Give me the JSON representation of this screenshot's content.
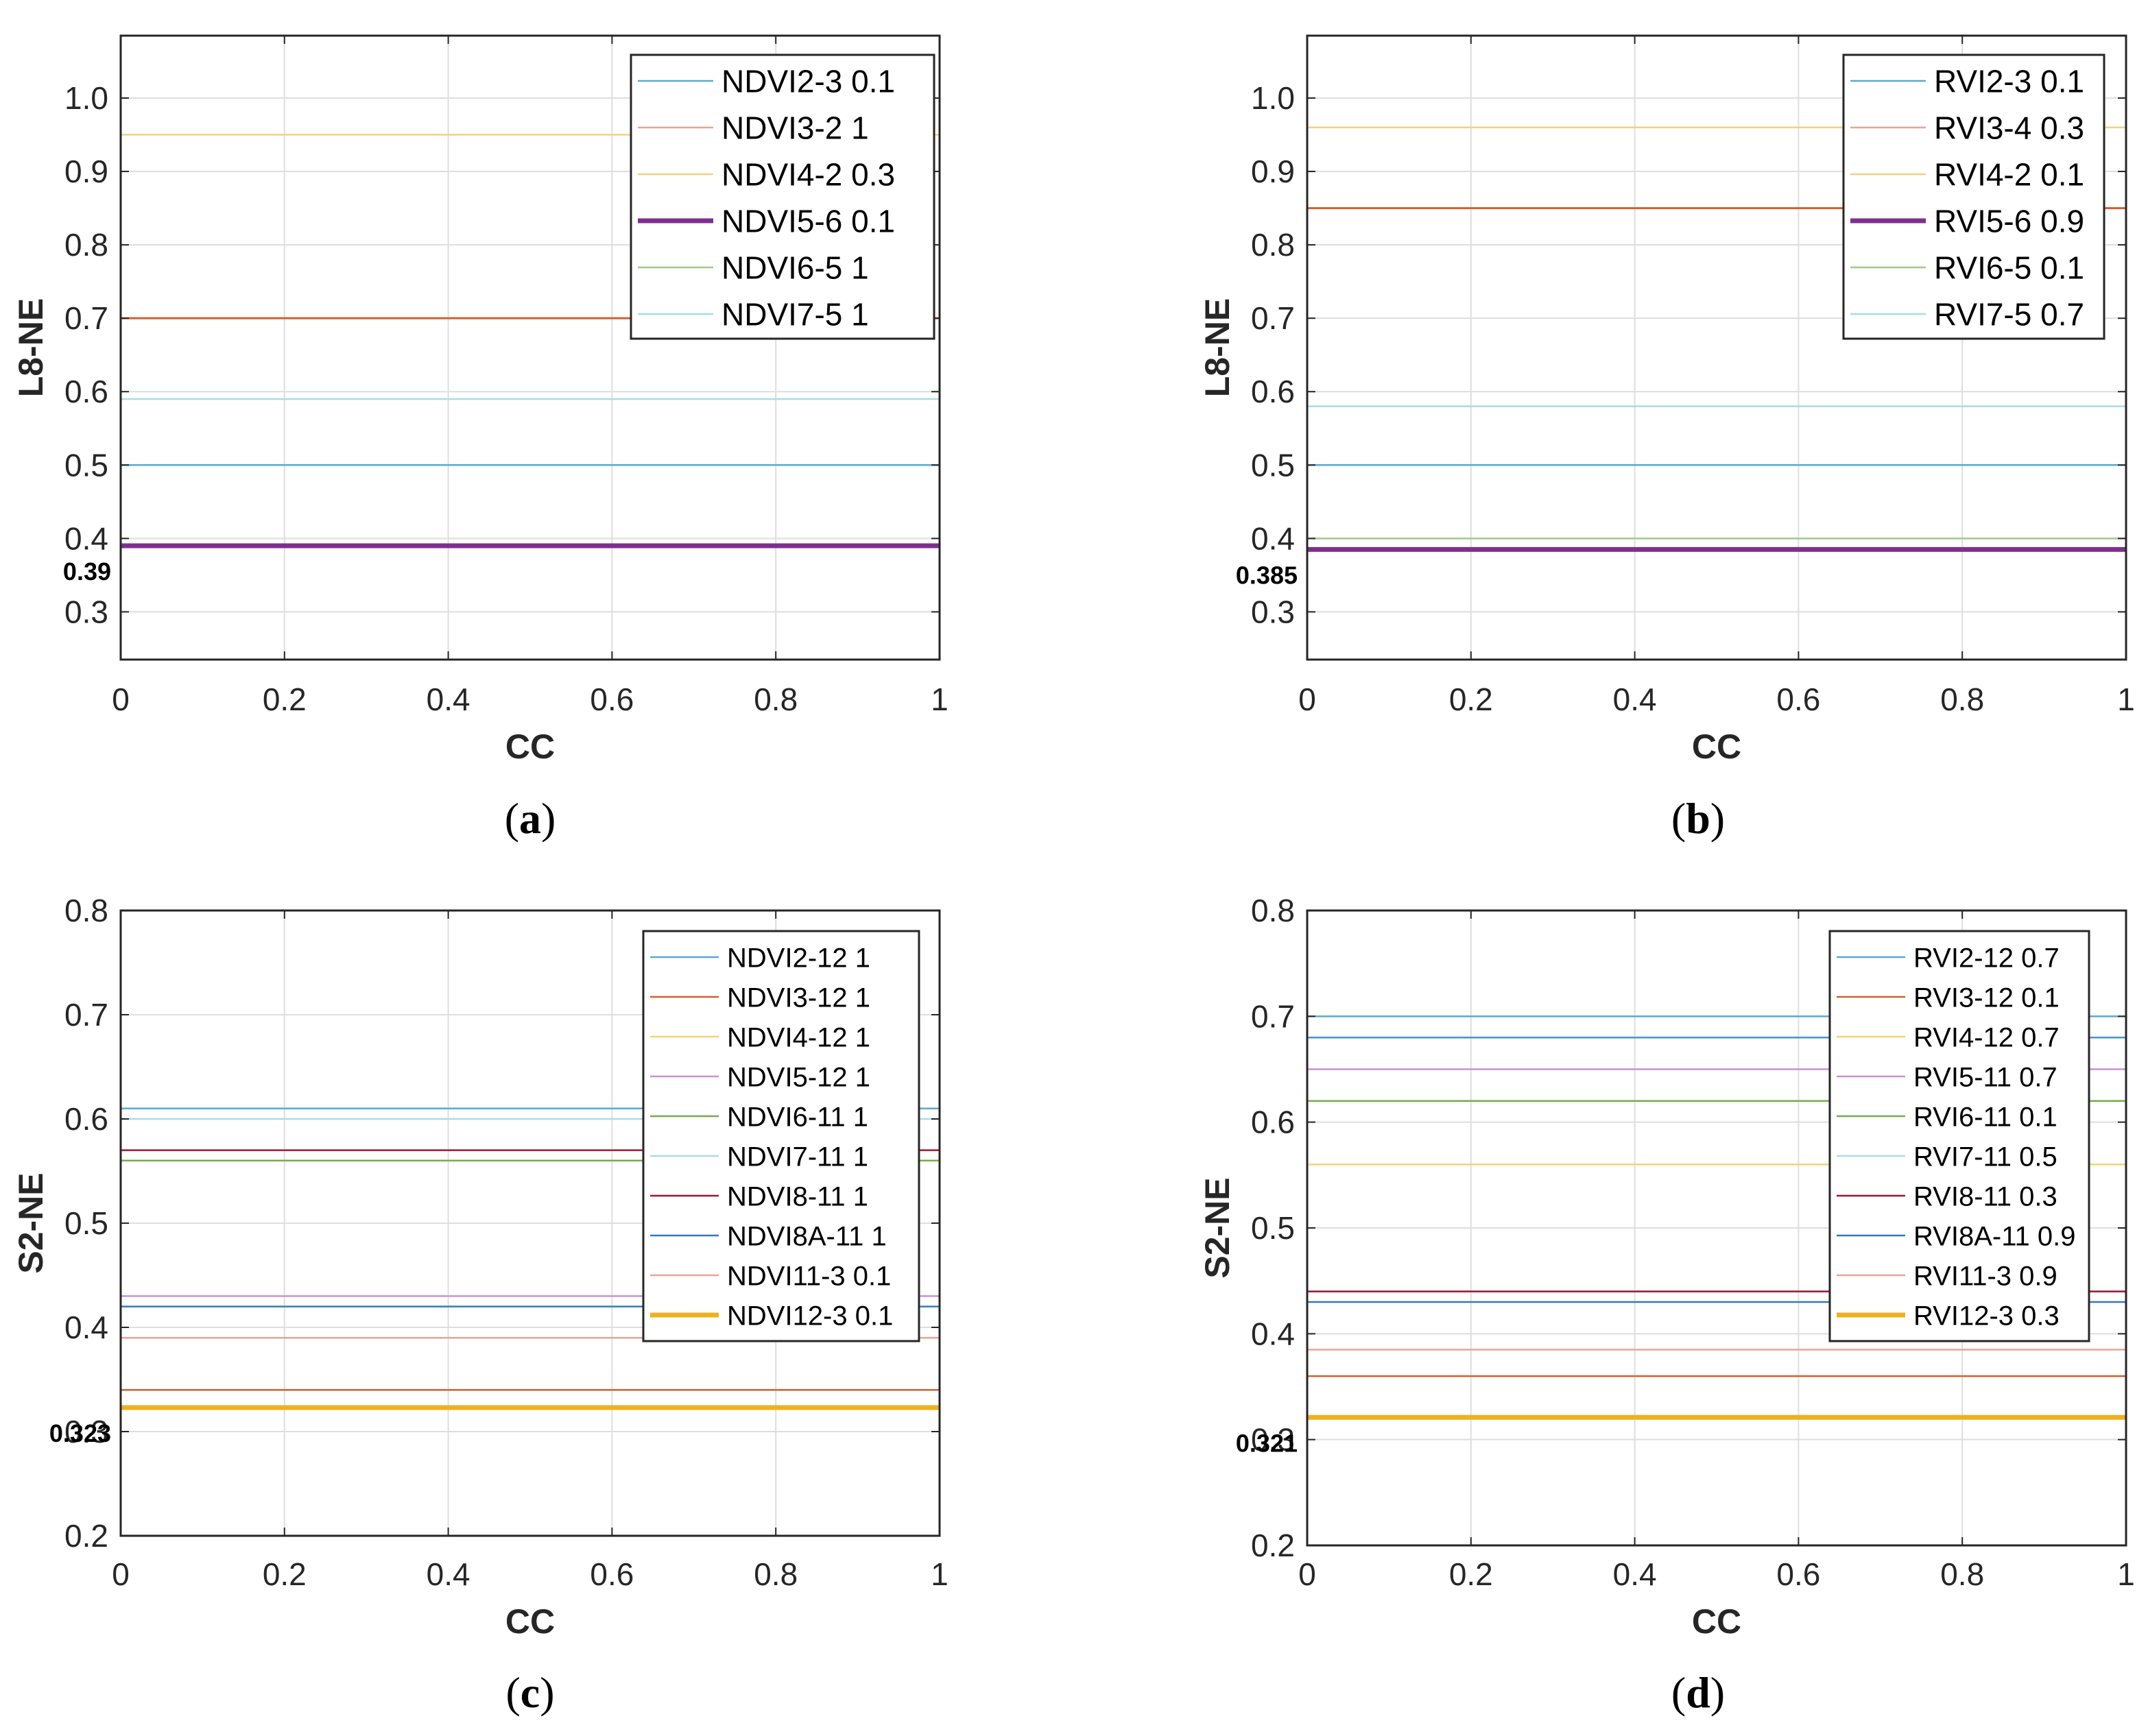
{
  "chart_data": [
    {
      "type": "line",
      "panel": "(a)",
      "caption_letter": "a",
      "xlabel": "CC",
      "ylabel": "L8-NE",
      "xlim": [
        0,
        1
      ],
      "ylim": [
        0.235,
        1.085
      ],
      "xticks": [
        "0",
        "0.2",
        "0.4",
        "0.6",
        "0.8",
        "1"
      ],
      "xtick_values": [
        0,
        0.2,
        0.4,
        0.6,
        0.8,
        1
      ],
      "yticks": [
        "0.3",
        "0.4",
        "0.5",
        "0.6",
        "0.7",
        "0.8",
        "0.9",
        "1.0"
      ],
      "ytick_values": [
        0.3,
        0.4,
        0.5,
        0.6,
        0.7,
        0.8,
        0.9,
        1.0
      ],
      "annotation": {
        "text": "0.39",
        "value": 0.39
      },
      "series": [
        {
          "name": "NDVI2-3 0.1",
          "value": 0.5,
          "color": "#5aa9cf",
          "width": 2.5
        },
        {
          "name": "NDVI3-2 1",
          "value": 0.39,
          "color": "#e9a395",
          "width": 2.5
        },
        {
          "name": "NDVI4-2 0.3",
          "value": 0.95,
          "color": "#f2d374",
          "width": 2.5
        },
        {
          "name": "NDVI5-6 0.1",
          "value": 0.39,
          "color": "#7e2f8e",
          "width": 7
        },
        {
          "name": "NDVI6-5 1",
          "value": 0.39,
          "color": "#9fcb89",
          "width": 2.5
        },
        {
          "name": "NDVI7-5 1",
          "value": 0.59,
          "color": "#a8dcee",
          "width": 2.5
        }
      ],
      "extra_lines": [
        {
          "value": 0.7,
          "color": "#d35f2b",
          "width": 3
        },
        {
          "value": 0.59,
          "color": "#3f97c9",
          "width": 2
        }
      ]
    },
    {
      "type": "line",
      "panel": "(b)",
      "caption_letter": "b",
      "xlabel": "CC",
      "ylabel": "L8-NE",
      "xlim": [
        0,
        1
      ],
      "ylim": [
        0.235,
        1.085
      ],
      "xticks": [
        "0",
        "0.2",
        "0.4",
        "0.6",
        "0.8",
        "1"
      ],
      "xtick_values": [
        0,
        0.2,
        0.4,
        0.6,
        0.8,
        1
      ],
      "yticks": [
        "0.3",
        "0.4",
        "0.5",
        "0.6",
        "0.7",
        "0.8",
        "0.9",
        "1.0"
      ],
      "ytick_values": [
        0.3,
        0.4,
        0.5,
        0.6,
        0.7,
        0.8,
        0.9,
        1.0
      ],
      "annotation": {
        "text": "0.385",
        "value": 0.385
      },
      "series": [
        {
          "name": "RVI2-3 0.1",
          "value": 0.5,
          "color": "#5aa9cf",
          "width": 2.5
        },
        {
          "name": "RVI3-4 0.3",
          "value": 0.385,
          "color": "#e9a395",
          "width": 2.5
        },
        {
          "name": "RVI4-2 0.1",
          "value": 0.96,
          "color": "#f2d374",
          "width": 2.5
        },
        {
          "name": "RVI5-6 0.9",
          "value": 0.385,
          "color": "#7e2f8e",
          "width": 7
        },
        {
          "name": "RVI6-5 0.1",
          "value": 0.4,
          "color": "#9fcb89",
          "width": 2.5
        },
        {
          "name": "RVI7-5 0.7",
          "value": 0.58,
          "color": "#a8dcee",
          "width": 2.5
        }
      ],
      "extra_lines": [
        {
          "value": 0.85,
          "color": "#d35f2b",
          "width": 3
        },
        {
          "value": 0.58,
          "color": "#3f97c9",
          "width": 2
        }
      ]
    },
    {
      "type": "line",
      "panel": "(c)",
      "caption_letter": "c",
      "xlabel": "CC",
      "ylabel": "S2-NE",
      "xlim": [
        0,
        1
      ],
      "ylim": [
        0.2,
        0.8
      ],
      "xticks": [
        "0",
        "0.2",
        "0.4",
        "0.6",
        "0.8",
        "1"
      ],
      "xtick_values": [
        0,
        0.2,
        0.4,
        0.6,
        0.8,
        1
      ],
      "yticks": [
        "0.2",
        "0.3",
        "0.4",
        "0.5",
        "0.6",
        "0.7",
        "0.8"
      ],
      "ytick_values": [
        0.2,
        0.3,
        0.4,
        0.5,
        0.6,
        0.7,
        0.8
      ],
      "annotation": {
        "text": "0.323",
        "value": 0.323
      },
      "series": [
        {
          "name": "NDVI2-12 1",
          "value": 0.61,
          "color": "#5aa9cf",
          "width": 2.5
        },
        {
          "name": "NDVI3-12 1",
          "value": 0.34,
          "color": "#d35f2b",
          "width": 2.5
        },
        {
          "name": "NDVI4-12 1",
          "value": 0.323,
          "color": "#f2d374",
          "width": 2.5
        },
        {
          "name": "NDVI5-12 1",
          "value": 0.43,
          "color": "#c792cf",
          "width": 2.5
        },
        {
          "name": "NDVI6-11 1",
          "value": 0.56,
          "color": "#77ac48",
          "width": 2.5
        },
        {
          "name": "NDVI7-11 1",
          "value": 0.6,
          "color": "#a8dcee",
          "width": 2.5
        },
        {
          "name": "NDVI8-11 1",
          "value": 0.57,
          "color": "#a2142f",
          "width": 2.5
        },
        {
          "name": "NDVI8A-11 1",
          "value": 0.42,
          "color": "#2e7bc0",
          "width": 2.5
        },
        {
          "name": "NDVI11-3 0.1",
          "value": 0.39,
          "color": "#e9a395",
          "width": 2.5
        },
        {
          "name": "NDVI12-3 0.1",
          "value": 0.323,
          "color": "#edb120",
          "width": 7
        }
      ],
      "extra_lines": []
    },
    {
      "type": "line",
      "panel": "(d)",
      "caption_letter": "d",
      "xlabel": "CC",
      "ylabel": "S2-NE",
      "xlim": [
        0,
        1
      ],
      "ylim": [
        0.2,
        0.8
      ],
      "xticks": [
        "0",
        "0.2",
        "0.4",
        "0.6",
        "0.8",
        "1"
      ],
      "xtick_values": [
        0,
        0.2,
        0.4,
        0.6,
        0.8,
        1
      ],
      "yticks": [
        "0.2",
        "0.3",
        "0.4",
        "0.5",
        "0.6",
        "0.7",
        "0.8"
      ],
      "ytick_values": [
        0.2,
        0.3,
        0.4,
        0.5,
        0.6,
        0.7,
        0.8
      ],
      "annotation": {
        "text": "0.321",
        "value": 0.321
      },
      "series": [
        {
          "name": "RVI2-12 0.7",
          "value": 0.7,
          "color": "#5aa9cf",
          "width": 2.5
        },
        {
          "name": "RVI3-12 0.1",
          "value": 0.36,
          "color": "#d35f2b",
          "width": 2.5
        },
        {
          "name": "RVI4-12 0.7",
          "value": 0.56,
          "color": "#f2d374",
          "width": 2.5
        },
        {
          "name": "RVI5-11 0.7",
          "value": 0.65,
          "color": "#c792cf",
          "width": 2.5
        },
        {
          "name": "RVI6-11 0.1",
          "value": 0.62,
          "color": "#77ac48",
          "width": 2.5
        },
        {
          "name": "RVI7-11 0.5",
          "value": 0.44,
          "color": "#a8dcee",
          "width": 2.5
        },
        {
          "name": "RVI8-11 0.3",
          "value": 0.44,
          "color": "#a2142f",
          "width": 2.5
        },
        {
          "name": "RVI8A-11 0.9",
          "value": 0.43,
          "color": "#2e7bc0",
          "width": 2.5
        },
        {
          "name": "RVI11-3 0.9",
          "value": 0.385,
          "color": "#e9a395",
          "width": 2.5
        },
        {
          "name": "RVI12-3 0.3",
          "value": 0.321,
          "color": "#edb120",
          "width": 7
        }
      ],
      "extra_lines": [
        {
          "value": 0.68,
          "color": "#3f97c9",
          "width": 2.5
        }
      ]
    }
  ]
}
